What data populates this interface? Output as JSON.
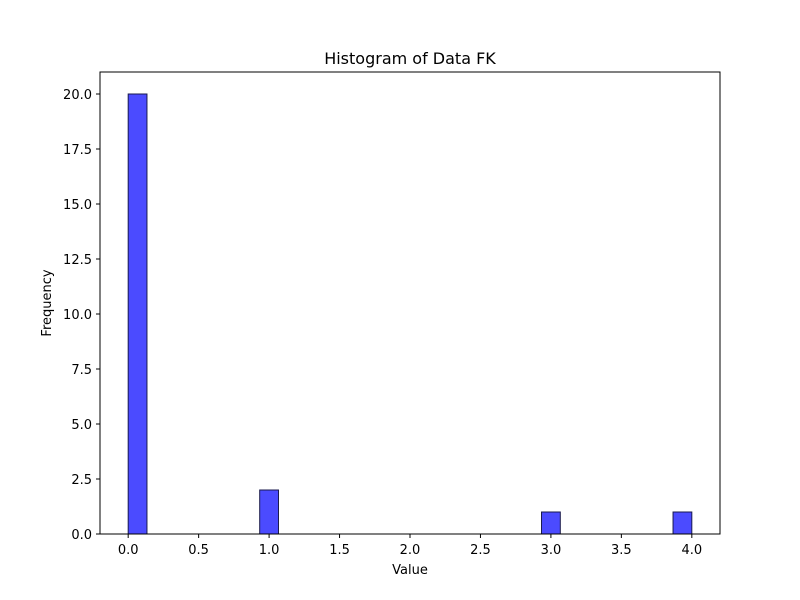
{
  "chart_data": {
    "type": "bar",
    "title": "Histogram of Data FK",
    "xlabel": "Value",
    "ylabel": "Frequency",
    "xlim": [
      -0.2,
      4.2
    ],
    "ylim": [
      0,
      21
    ],
    "xticks": [
      0.0,
      0.5,
      1.0,
      1.5,
      2.0,
      2.5,
      3.0,
      3.5,
      4.0
    ],
    "yticks": [
      0.0,
      2.5,
      5.0,
      7.5,
      10.0,
      12.5,
      15.0,
      17.5,
      20.0
    ],
    "bin_width": 0.1333,
    "bins": [
      {
        "start": 0.0,
        "end": 0.1333,
        "count": 20
      },
      {
        "start": 0.9333,
        "end": 1.0667,
        "count": 2
      },
      {
        "start": 2.9333,
        "end": 3.0667,
        "count": 1
      },
      {
        "start": 3.8667,
        "end": 4.0,
        "count": 1
      }
    ],
    "grid": false,
    "colors": {
      "bar_fill": "#4b4bff",
      "bar_edge": "#1a1a4d"
    }
  }
}
